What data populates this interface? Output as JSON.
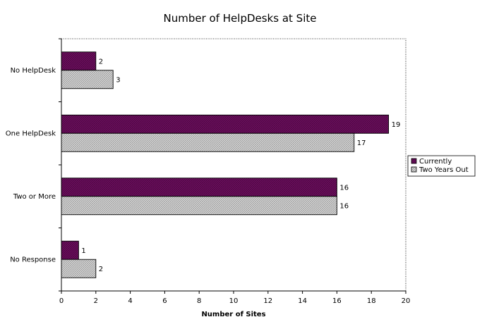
{
  "chart_data": {
    "type": "bar",
    "orientation": "horizontal",
    "title": "Number of HelpDesks at Site",
    "xlabel": "Number of Sites",
    "ylabel": "",
    "categories": [
      "No HelpDesk",
      "One HelpDesk",
      "Two or More",
      "No Response"
    ],
    "series": [
      {
        "name": "Currently",
        "values": [
          2,
          19,
          16,
          1
        ],
        "color": "#6a0f5c"
      },
      {
        "name": "Two Years Out",
        "values": [
          3,
          17,
          16,
          2
        ],
        "color": "#c8c8c8"
      }
    ],
    "xlim": [
      0,
      20
    ],
    "xticks": [
      0,
      2,
      4,
      6,
      8,
      10,
      12,
      14,
      16,
      18,
      20
    ],
    "grid": false,
    "legend_position": "right"
  }
}
